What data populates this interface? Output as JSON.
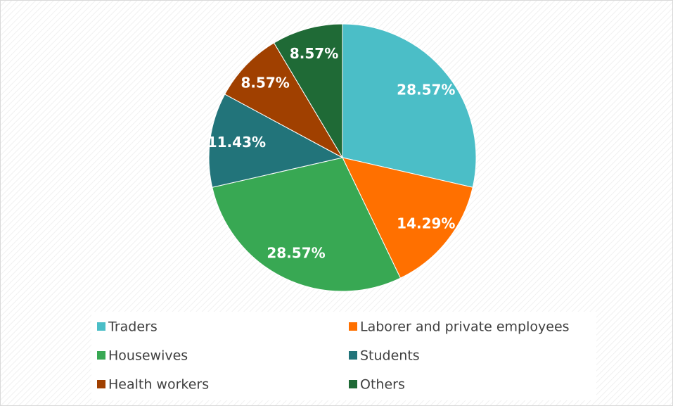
{
  "chart_data": {
    "type": "pie",
    "categories": [
      "Traders",
      "Laborer and private employees",
      "Housewives",
      "Students",
      "Health workers",
      "Others"
    ],
    "values": [
      28.57,
      14.29,
      28.57,
      11.43,
      8.57,
      8.57
    ],
    "value_labels": [
      "28.57%",
      "14.29%",
      "28.57%",
      "11.43%",
      "8.57%",
      "8.57%"
    ],
    "colors": [
      "#4bbec7",
      "#ff7000",
      "#38a853",
      "#22747a",
      "#a04000",
      "#1f6a36"
    ],
    "legend": "bottom"
  }
}
